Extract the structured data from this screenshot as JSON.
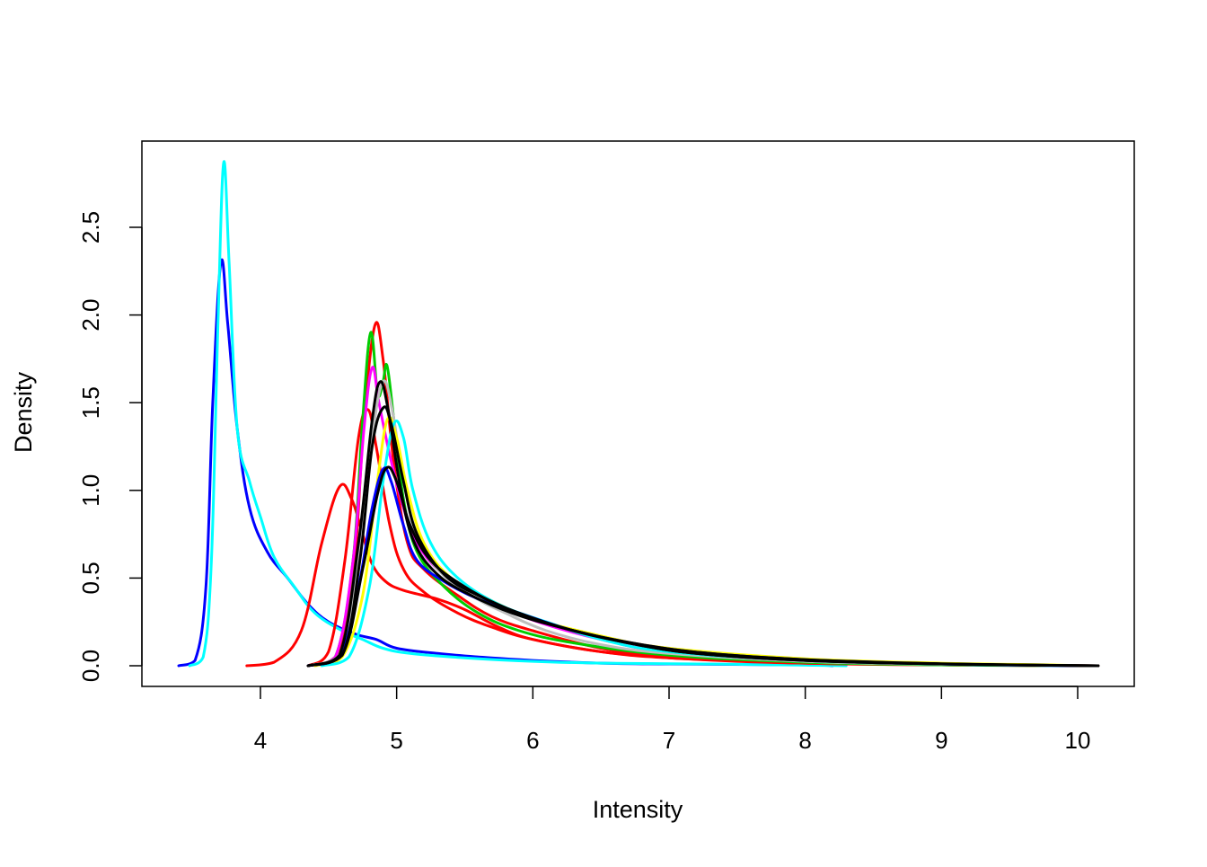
{
  "chart_data": {
    "type": "line",
    "title": "",
    "xlabel": "Intensity",
    "ylabel": "Density",
    "xlim": [
      3.4,
      10.15
    ],
    "ylim": [
      0,
      2.9
    ],
    "x_ticks": [
      4,
      5,
      6,
      7,
      8,
      9,
      10
    ],
    "x_tick_labels": [
      "4",
      "5",
      "6",
      "7",
      "8",
      "9",
      "10"
    ],
    "y_ticks": [
      0,
      0.5,
      1.0,
      1.5,
      2.0,
      2.5
    ],
    "y_tick_labels": [
      "0.0",
      "0.5",
      "1.0",
      "1.5",
      "2.0",
      "2.5"
    ],
    "grid": false,
    "legend": "none",
    "series": [
      {
        "color": "#0000ff",
        "points": [
          [
            3.4,
            0
          ],
          [
            3.52,
            0.03
          ],
          [
            3.6,
            0.45
          ],
          [
            3.65,
            1.5
          ],
          [
            3.71,
            2.3
          ],
          [
            3.76,
            1.95
          ],
          [
            3.83,
            1.35
          ],
          [
            3.92,
            0.9
          ],
          [
            4.05,
            0.65
          ],
          [
            4.2,
            0.5
          ],
          [
            4.35,
            0.35
          ],
          [
            4.5,
            0.25
          ],
          [
            4.7,
            0.18
          ],
          [
            4.85,
            0.15
          ],
          [
            5.0,
            0.1
          ],
          [
            5.3,
            0.07
          ],
          [
            5.6,
            0.05
          ],
          [
            6.0,
            0.03
          ],
          [
            6.5,
            0.015
          ],
          [
            7.0,
            0.01
          ],
          [
            8.0,
            0.005
          ],
          [
            8.2,
            0
          ]
        ]
      },
      {
        "color": "#00ffff",
        "points": [
          [
            3.48,
            0
          ],
          [
            3.58,
            0.05
          ],
          [
            3.64,
            0.6
          ],
          [
            3.69,
            2.0
          ],
          [
            3.73,
            2.87
          ],
          [
            3.77,
            2.3
          ],
          [
            3.83,
            1.35
          ],
          [
            3.92,
            1.05
          ],
          [
            4.0,
            0.85
          ],
          [
            4.1,
            0.62
          ],
          [
            4.25,
            0.45
          ],
          [
            4.4,
            0.3
          ],
          [
            4.6,
            0.2
          ],
          [
            4.75,
            0.15
          ],
          [
            4.9,
            0.1
          ],
          [
            5.1,
            0.07
          ],
          [
            5.5,
            0.045
          ],
          [
            6.0,
            0.025
          ],
          [
            6.5,
            0.015
          ],
          [
            7.5,
            0.008
          ],
          [
            8.3,
            0
          ]
        ]
      },
      {
        "color": "#ff0000",
        "points": [
          [
            3.9,
            0
          ],
          [
            4.1,
            0.02
          ],
          [
            4.3,
            0.2
          ],
          [
            4.45,
            0.7
          ],
          [
            4.58,
            1.02
          ],
          [
            4.67,
            0.95
          ],
          [
            4.75,
            0.75
          ],
          [
            4.82,
            0.58
          ],
          [
            4.92,
            0.48
          ],
          [
            5.05,
            0.43
          ],
          [
            5.3,
            0.38
          ],
          [
            5.5,
            0.32
          ],
          [
            5.75,
            0.22
          ],
          [
            6.0,
            0.15
          ],
          [
            6.5,
            0.08
          ],
          [
            7.0,
            0.045
          ],
          [
            7.5,
            0.025
          ],
          [
            8.0,
            0.015
          ],
          [
            9.0,
            0.005
          ],
          [
            10.15,
            0
          ]
        ]
      },
      {
        "color": "#ff0000",
        "points": [
          [
            4.35,
            0
          ],
          [
            4.5,
            0.08
          ],
          [
            4.62,
            0.6
          ],
          [
            4.72,
            1.3
          ],
          [
            4.79,
            1.46
          ],
          [
            4.85,
            1.25
          ],
          [
            4.95,
            0.8
          ],
          [
            5.05,
            0.55
          ],
          [
            5.2,
            0.42
          ],
          [
            5.45,
            0.3
          ],
          [
            5.7,
            0.22
          ],
          [
            6.0,
            0.15
          ],
          [
            6.5,
            0.08
          ],
          [
            7.0,
            0.045
          ],
          [
            8.0,
            0.015
          ],
          [
            9.0,
            0.005
          ],
          [
            10.0,
            0
          ]
        ]
      },
      {
        "color": "#ff0000",
        "points": [
          [
            4.35,
            0
          ],
          [
            4.55,
            0.05
          ],
          [
            4.68,
            0.5
          ],
          [
            4.76,
            1.4
          ],
          [
            4.84,
            1.94
          ],
          [
            4.9,
            1.75
          ],
          [
            4.98,
            1.15
          ],
          [
            5.08,
            0.7
          ],
          [
            5.2,
            0.55
          ],
          [
            5.45,
            0.4
          ],
          [
            5.7,
            0.28
          ],
          [
            6.0,
            0.2
          ],
          [
            6.5,
            0.1
          ],
          [
            7.0,
            0.05
          ],
          [
            8.0,
            0.015
          ],
          [
            9.0,
            0.005
          ],
          [
            10.1,
            0
          ]
        ]
      },
      {
        "color": "#00cd00",
        "points": [
          [
            4.35,
            0
          ],
          [
            4.55,
            0.05
          ],
          [
            4.68,
            0.6
          ],
          [
            4.75,
            1.4
          ],
          [
            4.81,
            1.9
          ],
          [
            4.86,
            1.55
          ],
          [
            4.9,
            1.62
          ],
          [
            4.93,
            1.71
          ],
          [
            4.98,
            1.4
          ],
          [
            5.05,
            0.95
          ],
          [
            5.15,
            0.65
          ],
          [
            5.35,
            0.45
          ],
          [
            5.6,
            0.3
          ],
          [
            5.9,
            0.2
          ],
          [
            6.3,
            0.13
          ],
          [
            7.0,
            0.06
          ],
          [
            8.0,
            0.02
          ],
          [
            9.0,
            0.005
          ],
          [
            10.0,
            0
          ]
        ]
      },
      {
        "color": "#ff00ff",
        "points": [
          [
            4.35,
            0
          ],
          [
            4.55,
            0.05
          ],
          [
            4.68,
            0.6
          ],
          [
            4.76,
            1.35
          ],
          [
            4.82,
            1.7
          ],
          [
            4.87,
            1.5
          ],
          [
            4.95,
            1.2
          ],
          [
            5.05,
            0.9
          ],
          [
            5.15,
            0.7
          ],
          [
            5.3,
            0.55
          ],
          [
            5.5,
            0.45
          ],
          [
            5.75,
            0.35
          ],
          [
            6.0,
            0.26
          ],
          [
            6.5,
            0.15
          ],
          [
            7.0,
            0.08
          ],
          [
            8.0,
            0.03
          ],
          [
            9.0,
            0.01
          ],
          [
            10.0,
            0
          ]
        ]
      },
      {
        "color": "#bebebe",
        "points": [
          [
            4.35,
            0
          ],
          [
            4.6,
            0.08
          ],
          [
            4.72,
            0.6
          ],
          [
            4.82,
            1.3
          ],
          [
            4.9,
            1.62
          ],
          [
            4.97,
            1.45
          ],
          [
            5.05,
            1.05
          ],
          [
            5.15,
            0.75
          ],
          [
            5.3,
            0.55
          ],
          [
            5.55,
            0.4
          ],
          [
            5.8,
            0.3
          ],
          [
            6.1,
            0.2
          ],
          [
            6.5,
            0.12
          ],
          [
            7.0,
            0.07
          ],
          [
            8.0,
            0.025
          ],
          [
            9.0,
            0.008
          ],
          [
            10.0,
            0
          ]
        ]
      },
      {
        "color": "#ffff00",
        "points": [
          [
            4.4,
            0
          ],
          [
            4.6,
            0.05
          ],
          [
            4.75,
            0.4
          ],
          [
            4.85,
            1.0
          ],
          [
            4.93,
            1.4
          ],
          [
            5.0,
            1.3
          ],
          [
            5.08,
            1.0
          ],
          [
            5.2,
            0.7
          ],
          [
            5.4,
            0.5
          ],
          [
            5.7,
            0.37
          ],
          [
            6.0,
            0.27
          ],
          [
            6.5,
            0.17
          ],
          [
            7.0,
            0.1
          ],
          [
            8.0,
            0.04
          ],
          [
            9.0,
            0.015
          ],
          [
            9.8,
            0.005
          ],
          [
            10.0,
            0
          ]
        ]
      },
      {
        "color": "#00ffff",
        "points": [
          [
            4.45,
            0
          ],
          [
            4.65,
            0.05
          ],
          [
            4.8,
            0.45
          ],
          [
            4.9,
            1.05
          ],
          [
            4.98,
            1.38
          ],
          [
            5.05,
            1.3
          ],
          [
            5.12,
            1.0
          ],
          [
            5.25,
            0.7
          ],
          [
            5.45,
            0.5
          ],
          [
            5.75,
            0.35
          ],
          [
            6.1,
            0.25
          ],
          [
            6.5,
            0.15
          ],
          [
            7.0,
            0.08
          ],
          [
            8.0,
            0.03
          ],
          [
            9.0,
            0.01
          ],
          [
            9.9,
            0
          ]
        ]
      },
      {
        "color": "#0000ff",
        "points": [
          [
            4.35,
            0
          ],
          [
            4.58,
            0.05
          ],
          [
            4.72,
            0.45
          ],
          [
            4.82,
            0.9
          ],
          [
            4.9,
            1.12
          ],
          [
            4.96,
            1.05
          ],
          [
            5.05,
            0.8
          ],
          [
            5.15,
            0.6
          ],
          [
            5.35,
            0.48
          ],
          [
            5.6,
            0.38
          ],
          [
            5.9,
            0.3
          ],
          [
            6.3,
            0.2
          ],
          [
            6.8,
            0.12
          ],
          [
            7.3,
            0.07
          ],
          [
            8.0,
            0.035
          ],
          [
            9.0,
            0.01
          ],
          [
            10.0,
            0
          ]
        ]
      },
      {
        "color": "#000000",
        "points": [
          [
            4.35,
            0
          ],
          [
            4.6,
            0.06
          ],
          [
            4.73,
            0.6
          ],
          [
            4.82,
            1.25
          ],
          [
            4.9,
            1.47
          ],
          [
            4.96,
            1.38
          ],
          [
            5.05,
            1.05
          ],
          [
            5.15,
            0.75
          ],
          [
            5.35,
            0.52
          ],
          [
            5.6,
            0.4
          ],
          [
            5.9,
            0.3
          ],
          [
            6.3,
            0.2
          ],
          [
            6.8,
            0.12
          ],
          [
            7.3,
            0.07
          ],
          [
            8.0,
            0.035
          ],
          [
            9.0,
            0.012
          ],
          [
            10.15,
            0
          ]
        ]
      },
      {
        "color": "#000000",
        "points": [
          [
            4.35,
            0
          ],
          [
            4.58,
            0.06
          ],
          [
            4.72,
            0.7
          ],
          [
            4.82,
            1.4
          ],
          [
            4.88,
            1.62
          ],
          [
            4.94,
            1.45
          ],
          [
            5.02,
            1.05
          ],
          [
            5.12,
            0.72
          ],
          [
            5.3,
            0.52
          ],
          [
            5.55,
            0.4
          ],
          [
            5.85,
            0.3
          ],
          [
            6.2,
            0.22
          ],
          [
            6.7,
            0.13
          ],
          [
            7.2,
            0.07
          ],
          [
            8.0,
            0.03
          ],
          [
            9.0,
            0.01
          ],
          [
            10.15,
            0
          ]
        ]
      },
      {
        "color": "#000000",
        "points": [
          [
            4.35,
            0
          ],
          [
            4.6,
            0.06
          ],
          [
            4.75,
            0.55
          ],
          [
            4.86,
            0.98
          ],
          [
            4.93,
            1.13
          ],
          [
            5.0,
            1.05
          ],
          [
            5.1,
            0.8
          ],
          [
            5.25,
            0.6
          ],
          [
            5.5,
            0.45
          ],
          [
            5.8,
            0.33
          ],
          [
            6.2,
            0.22
          ],
          [
            6.7,
            0.13
          ],
          [
            7.2,
            0.07
          ],
          [
            8.0,
            0.03
          ],
          [
            9.0,
            0.01
          ],
          [
            10.15,
            0
          ]
        ]
      }
    ]
  }
}
